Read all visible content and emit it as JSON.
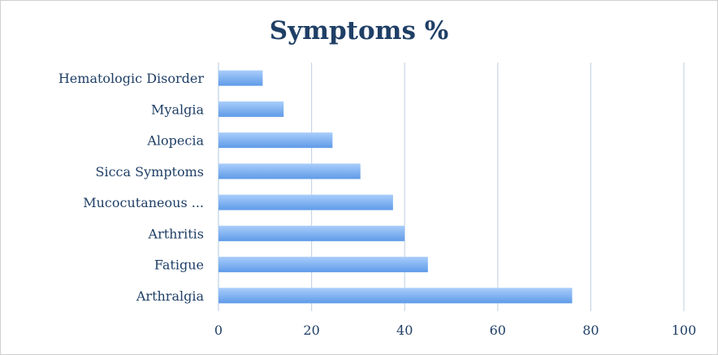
{
  "chart_data": {
    "type": "bar",
    "orientation": "horizontal",
    "title": "Symptoms %",
    "categories": [
      "Arthralgia",
      "Fatigue",
      "Arthritis",
      "Mucocutaneous ...",
      "Sicca Symptoms",
      "Alopecia",
      "Myalgia",
      "Hematologic Disorder"
    ],
    "values": [
      76,
      45,
      40,
      37.5,
      30.5,
      24.5,
      14,
      9.5
    ],
    "xlim": [
      0,
      100
    ],
    "xticks": [
      "0",
      "20",
      "40",
      "60",
      "80",
      "100"
    ],
    "grid": "vertical",
    "legend": "none",
    "colors": {
      "bar_light": "#a9cdfb",
      "bar_dark": "#5f9be8",
      "grid": "#c8d6e6",
      "text": "#1f3f66"
    }
  }
}
